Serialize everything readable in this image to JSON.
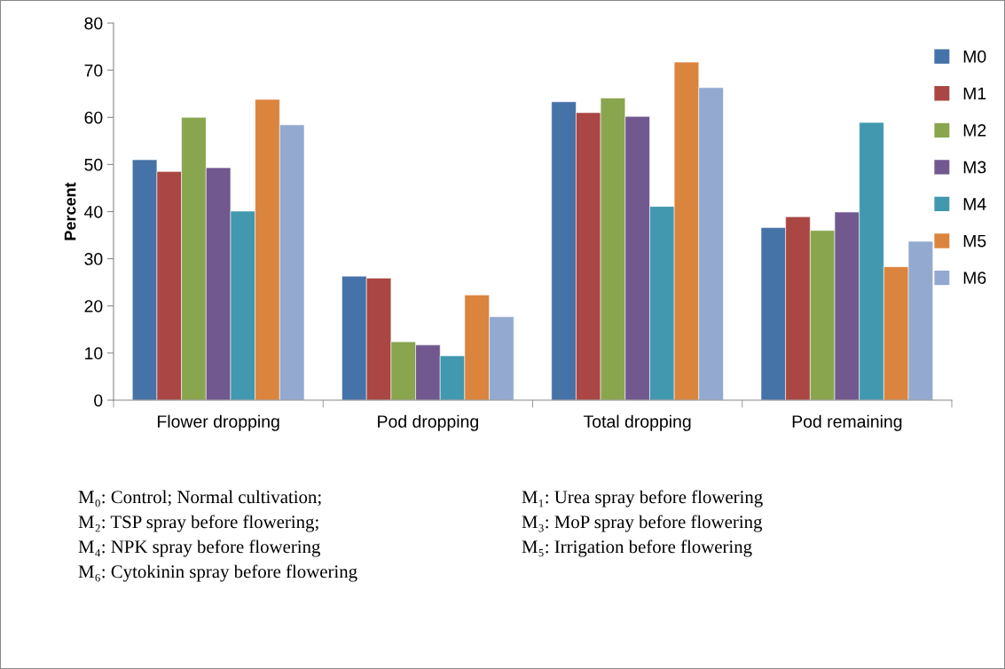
{
  "chart_data": {
    "type": "bar",
    "ylabel": "Percent",
    "categories": [
      "Flower dropping",
      "Pod dropping",
      "Total dropping",
      "Pod remaining"
    ],
    "series": [
      {
        "name": "M0",
        "color": "#4572a7",
        "values": [
          51.0,
          26.3,
          63.3,
          36.6
        ]
      },
      {
        "name": "M1",
        "color": "#aa4643",
        "values": [
          48.5,
          25.9,
          61.0,
          38.9
        ]
      },
      {
        "name": "M2",
        "color": "#89a54e",
        "values": [
          60.0,
          12.4,
          64.1,
          36.0
        ]
      },
      {
        "name": "M3",
        "color": "#71588f",
        "values": [
          49.3,
          11.7,
          60.2,
          39.9
        ]
      },
      {
        "name": "M4",
        "color": "#4198af",
        "values": [
          40.1,
          9.4,
          41.1,
          58.9
        ]
      },
      {
        "name": "M5",
        "color": "#db843d",
        "values": [
          63.8,
          22.3,
          71.7,
          28.3
        ]
      },
      {
        "name": "M6",
        "color": "#93a9cf",
        "values": [
          58.4,
          17.7,
          66.3,
          33.7
        ]
      }
    ],
    "ylim": [
      0,
      80
    ],
    "yticks": [
      0,
      10,
      20,
      30,
      40,
      50,
      60,
      70,
      80
    ],
    "grid": false,
    "legend": "right",
    "annotations": [
      "M₀: Control; Normal cultivation;",
      "M₁: Urea spray before flowering",
      "M₂: TSP spray before flowering;",
      "M₃: MoP spray before flowering",
      "M₄: NPK spray before flowering",
      "M₅: Irrigation before flowering",
      "M₆: Cytokinin spray before flowering"
    ]
  }
}
